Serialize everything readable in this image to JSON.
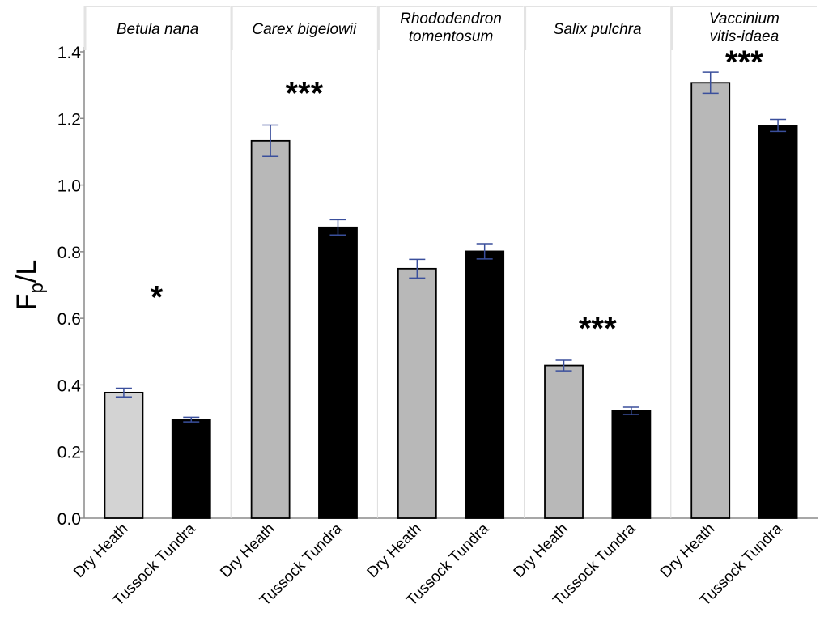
{
  "chart_data": {
    "type": "bar",
    "ylabel": {
      "main": "F",
      "sub": "p",
      "tail": "/L"
    },
    "ylim": [
      0,
      1.4
    ],
    "yticks": [
      "0.0",
      "0.2",
      "0.4",
      "0.6",
      "0.8",
      "1.0",
      "1.2",
      "1.4"
    ],
    "categories": [
      "Dry Heath",
      "Tussock Tundra"
    ],
    "colors": {
      "Dry Heath": "#b8b8b8",
      "Dry Heath (Betula nana)": "#d3d3d3",
      "Tussock Tundra": "#000000",
      "error_bar": "#3a4f9c",
      "strip_fill": "#ffffff",
      "strip_border": "#e3e3e3"
    },
    "panels": [
      {
        "title": [
          "Betula nana"
        ],
        "significance": "*",
        "values": [
          0.377,
          0.296
        ],
        "errors": [
          0.013,
          0.007
        ]
      },
      {
        "title": [
          "Carex bigelowii"
        ],
        "significance": "***",
        "values": [
          1.133,
          0.873
        ],
        "errors": [
          0.047,
          0.023
        ]
      },
      {
        "title": [
          "Rhododendron",
          "tomentosum"
        ],
        "significance": "",
        "values": [
          0.749,
          0.801
        ],
        "errors": [
          0.028,
          0.023
        ]
      },
      {
        "title": [
          "Salix pulchra"
        ],
        "significance": "***",
        "values": [
          0.458,
          0.322
        ],
        "errors": [
          0.016,
          0.011
        ]
      },
      {
        "title": [
          "Vaccinium",
          "vitis-idaea"
        ],
        "significance": "***",
        "values": [
          1.307,
          1.179
        ],
        "errors": [
          0.032,
          0.018
        ]
      }
    ]
  }
}
